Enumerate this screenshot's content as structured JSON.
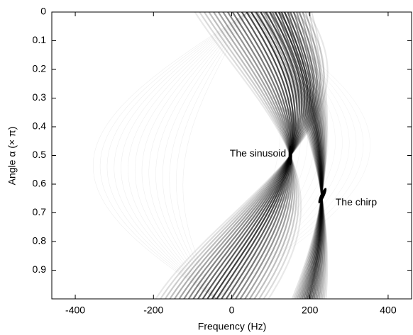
{
  "chart_data": {
    "type": "heatmap",
    "xlabel": "Frequency (Hz)",
    "ylabel": "Angle α (× π)",
    "xlim": [
      -460,
      460
    ],
    "xticks": [
      -400,
      -200,
      0,
      200,
      400
    ],
    "ylim": [
      0,
      1
    ],
    "yticks": [
      0,
      0.1,
      0.2,
      0.3,
      0.4,
      0.5,
      0.6,
      0.7,
      0.8,
      0.9
    ],
    "annotations": [
      {
        "text": "The sinusoid"
      },
      {
        "text": "The chirp"
      }
    ]
  }
}
